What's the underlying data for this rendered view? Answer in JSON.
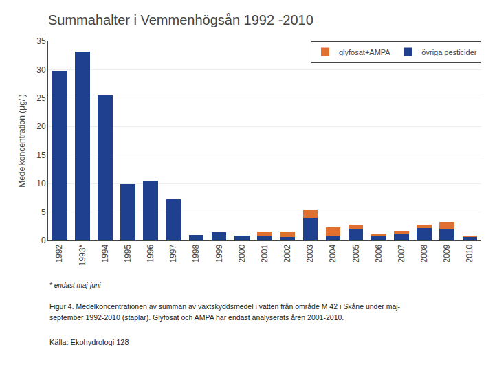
{
  "chart_data": {
    "type": "bar",
    "stacked": true,
    "title": "Summahalter i Vemmenhögsån 1992 -2010",
    "y_label": "Medelkoncentration (µg/l)",
    "categories": [
      "1992",
      "1993*",
      "1994",
      "1995",
      "1996",
      "1997",
      "1998",
      "1999",
      "2000",
      "2001",
      "2002",
      "2003",
      "2004",
      "2005",
      "2006",
      "2007",
      "2008",
      "2009",
      "2010"
    ],
    "series": [
      {
        "name": "övriga pesticider",
        "color": "#1F3F8F",
        "values": [
          29.8,
          33.2,
          25.5,
          9.9,
          10.5,
          7.3,
          1.0,
          1.4,
          0.8,
          0.7,
          0.6,
          4.0,
          0.8,
          2.0,
          0.9,
          1.2,
          2.2,
          2.0,
          0.6
        ]
      },
      {
        "name": "glyfosat+AMPA",
        "color": "#E07030",
        "values": [
          0.0,
          0.0,
          0.0,
          0.0,
          0.0,
          0.0,
          0.0,
          0.0,
          0.0,
          0.9,
          1.0,
          1.4,
          1.5,
          0.8,
          0.2,
          0.5,
          0.6,
          1.3,
          0.3
        ]
      }
    ],
    "ylim": [
      0,
      35
    ],
    "yticks": [
      0,
      5,
      10,
      15,
      20,
      25,
      30,
      35
    ],
    "grid": true,
    "legend": "upper right",
    "annotations": [
      "* endast maj-juni",
      "Figur 4. Medelkoncentrationen av summan av växtskyddsmedel i vatten från område M 42 i Skåne under maj-",
      "september 1992-2010 (staplar). Glyfosat och AMPA har endast analyserats åren 2001-2010.",
      "Källa: Ekohydrologi 128"
    ]
  }
}
